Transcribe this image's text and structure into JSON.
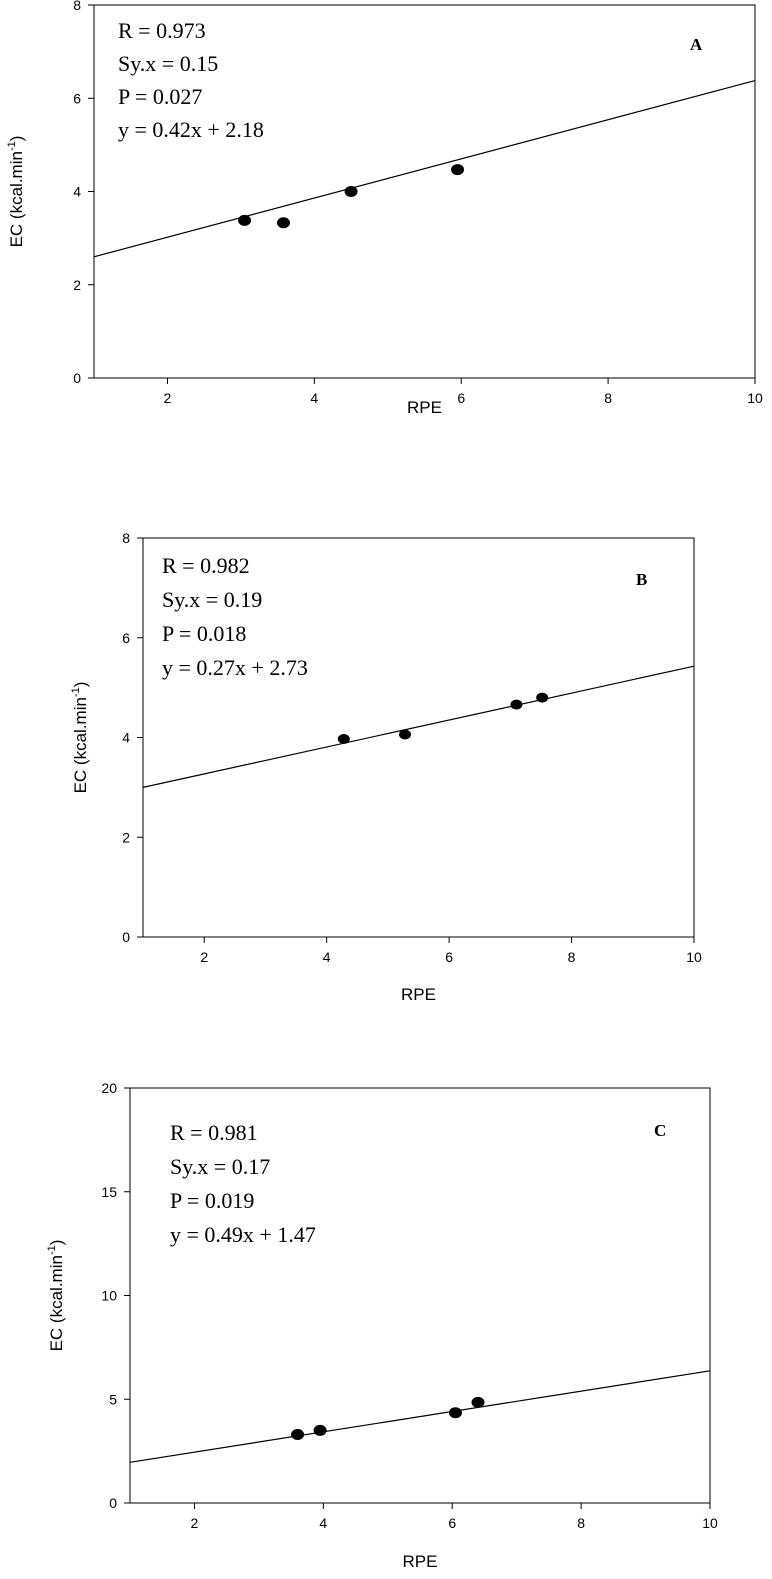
{
  "chart_data": [
    {
      "type": "scatter",
      "panel_label": "A",
      "xlabel": "RPE",
      "ylabel": "EC (kcal.min",
      "ylabel_sup": "-1",
      "ylabel_close": ")",
      "xlim": [
        1,
        10
      ],
      "ylim": [
        0,
        8
      ],
      "xticks": [
        2,
        4,
        6,
        8,
        10
      ],
      "yticks": [
        0,
        2,
        4,
        6,
        8
      ],
      "points": [
        {
          "x": 3.05,
          "y": 3.38
        },
        {
          "x": 3.58,
          "y": 3.33
        },
        {
          "x": 4.5,
          "y": 4.0
        },
        {
          "x": 5.95,
          "y": 4.47
        }
      ],
      "regression": {
        "slope": 0.42,
        "intercept": 2.18
      },
      "stats": [
        "R = 0.973",
        "Sy.x = 0.15",
        "P = 0.027",
        "y = 0.42x + 2.18"
      ]
    },
    {
      "type": "scatter",
      "panel_label": "B",
      "xlabel": "RPE",
      "ylabel": "EC (kcal.min",
      "ylabel_sup": "-1",
      "ylabel_close": ")",
      "xlim": [
        1,
        10
      ],
      "ylim": [
        0,
        8
      ],
      "xticks": [
        2,
        4,
        6,
        8,
        10
      ],
      "yticks": [
        0,
        2,
        4,
        6,
        8
      ],
      "points": [
        {
          "x": 4.28,
          "y": 3.97
        },
        {
          "x": 5.28,
          "y": 4.06
        },
        {
          "x": 7.1,
          "y": 4.66
        },
        {
          "x": 7.52,
          "y": 4.8
        }
      ],
      "regression": {
        "slope": 0.27,
        "intercept": 2.73
      },
      "stats": [
        "R = 0.982",
        "Sy.x = 0.19",
        "P = 0.018",
        "y = 0.27x + 2.73"
      ]
    },
    {
      "type": "scatter",
      "panel_label": "C",
      "xlabel": "RPE",
      "ylabel": "EC (kcal.min",
      "ylabel_sup": "-1",
      "ylabel_close": ")",
      "xlim": [
        1,
        10
      ],
      "ylim": [
        0,
        20
      ],
      "xticks": [
        2,
        4,
        6,
        8,
        10
      ],
      "yticks": [
        0,
        5,
        10,
        15,
        20
      ],
      "points": [
        {
          "x": 3.6,
          "y": 3.3
        },
        {
          "x": 3.95,
          "y": 3.5
        },
        {
          "x": 6.05,
          "y": 4.35
        },
        {
          "x": 6.4,
          "y": 4.85
        }
      ],
      "regression": {
        "slope": 0.49,
        "intercept": 1.47
      },
      "stats": [
        "R = 0.981",
        "Sy.x = 0.17",
        "P = 0.019",
        "y = 0.49x + 1.47"
      ]
    }
  ]
}
